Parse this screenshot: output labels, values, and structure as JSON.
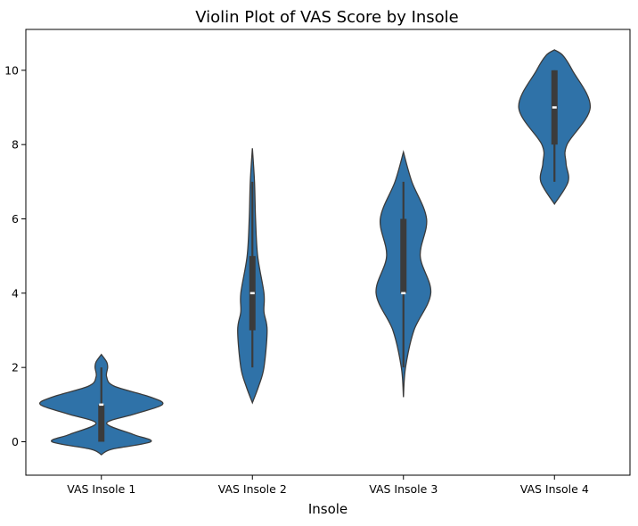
{
  "chart_data": {
    "type": "violin",
    "title": "Violin Plot of VAS Score by Insole",
    "xlabel": "Insole",
    "ylabel": "",
    "ylim": [
      -0.9,
      11.1
    ],
    "yticks": [
      0,
      2,
      4,
      6,
      8,
      10
    ],
    "grid": false,
    "colors": {
      "fill": "#2f72a8",
      "edge": "#3b3b3b",
      "median": "#ffffff"
    },
    "categories": [
      "VAS Insole 1",
      "VAS Insole 2",
      "VAS Insole 3",
      "VAS Insole 4"
    ],
    "series": [
      {
        "category": "VAS Insole 1",
        "min": 0,
        "q1": 0,
        "median": 1,
        "q3": 1,
        "max": 2,
        "density": [
          [
            -0.35,
            0
          ],
          [
            -0.2,
            0.1
          ],
          [
            0,
            0.47
          ],
          [
            0.2,
            0.3
          ],
          [
            0.5,
            0.05
          ],
          [
            0.75,
            0.32
          ],
          [
            1,
            0.58
          ],
          [
            1.2,
            0.47
          ],
          [
            1.5,
            0.12
          ],
          [
            1.75,
            0.05
          ],
          [
            2.0,
            0.06
          ],
          [
            2.15,
            0.05
          ],
          [
            2.35,
            0
          ]
        ]
      },
      {
        "category": "VAS Insole 2",
        "min": 2,
        "q1": 3,
        "median": 4,
        "q3": 5,
        "max": 7,
        "density": [
          [
            1.05,
            0
          ],
          [
            1.5,
            0.06
          ],
          [
            2,
            0.11
          ],
          [
            3,
            0.14
          ],
          [
            3.5,
            0.11
          ],
          [
            4,
            0.11
          ],
          [
            5,
            0.05
          ],
          [
            6,
            0.03
          ],
          [
            7,
            0.02
          ],
          [
            7.9,
            0
          ]
        ]
      },
      {
        "category": "VAS Insole 3",
        "min": 2,
        "q1": 4,
        "median": 4,
        "q3": 6,
        "max": 7,
        "density": [
          [
            1.2,
            0
          ],
          [
            2,
            0.02
          ],
          [
            3,
            0.1
          ],
          [
            4,
            0.26
          ],
          [
            5,
            0.16
          ],
          [
            6,
            0.22
          ],
          [
            7,
            0.08
          ],
          [
            7.8,
            0
          ]
        ]
      },
      {
        "category": "VAS Insole 4",
        "min": 7,
        "q1": 8,
        "median": 9,
        "q3": 10,
        "max": 10,
        "density": [
          [
            6.4,
            0
          ],
          [
            7,
            0.13
          ],
          [
            7.5,
            0.11
          ],
          [
            8,
            0.12
          ],
          [
            9,
            0.34
          ],
          [
            10,
            0.17
          ],
          [
            10.4,
            0.08
          ],
          [
            10.55,
            0
          ]
        ]
      }
    ]
  }
}
